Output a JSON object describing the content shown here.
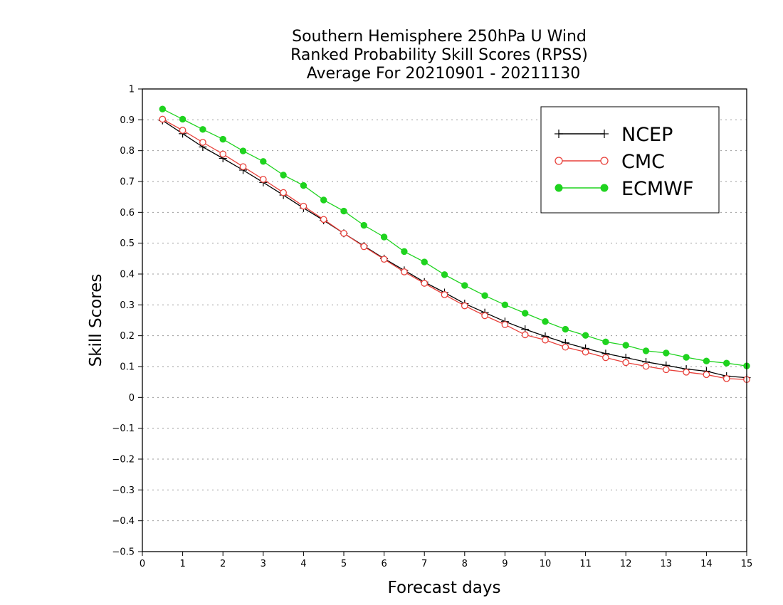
{
  "chart_data": {
    "type": "line",
    "title": [
      "Southern Hemisphere 250hPa U Wind",
      "Ranked Probability Skill Scores (RPSS)",
      "Average For 20210901 - 20211130"
    ],
    "xlabel": "Forecast days",
    "ylabel": "Skill Scores",
    "xlim": [
      0,
      15
    ],
    "ylim": [
      -0.5,
      1
    ],
    "xticks": [
      0,
      1,
      2,
      3,
      4,
      5,
      6,
      7,
      8,
      9,
      10,
      11,
      12,
      13,
      14,
      15
    ],
    "xtick_labels": [
      "0",
      "1",
      "2",
      "3",
      "4",
      "5",
      "6",
      "7",
      "8",
      "9",
      "10",
      "11",
      "12",
      "13",
      "14",
      "15"
    ],
    "yticks": [
      -0.5,
      -0.4,
      -0.3,
      -0.2,
      -0.1,
      0,
      0.1,
      0.2,
      0.3,
      0.4,
      0.5,
      0.6,
      0.7,
      0.8,
      0.9,
      1
    ],
    "ytick_labels": [
      "−0.5",
      "−0.4",
      "−0.3",
      "−0.2",
      "−0.1",
      "0",
      "0.1",
      "0.2",
      "0.3",
      "0.4",
      "0.5",
      "0.6",
      "0.7",
      "0.8",
      "0.9",
      "1"
    ],
    "grid": "horizontal dotted",
    "legend_position": "top-right",
    "x": [
      0.5,
      1.0,
      1.5,
      2.0,
      2.5,
      3.0,
      3.5,
      4.0,
      4.5,
      5.0,
      5.5,
      6.0,
      6.5,
      7.0,
      7.5,
      8.0,
      8.5,
      9.0,
      9.5,
      10.0,
      10.5,
      11.0,
      11.5,
      12.0,
      12.5,
      13.0,
      13.5,
      14.0,
      14.5,
      15.0
    ],
    "series": [
      {
        "name": "NCEP",
        "color": "#000000",
        "marker": "plus",
        "values": [
          0.898,
          0.855,
          0.812,
          0.775,
          0.737,
          0.697,
          0.656,
          0.614,
          0.574,
          0.532,
          0.491,
          0.45,
          0.412,
          0.374,
          0.34,
          0.304,
          0.275,
          0.246,
          0.221,
          0.198,
          0.177,
          0.159,
          0.142,
          0.129,
          0.115,
          0.104,
          0.092,
          0.085,
          0.069,
          0.064
        ]
      },
      {
        "name": "CMC",
        "color": "#e8413b",
        "marker": "open-circle",
        "values": [
          0.902,
          0.866,
          0.827,
          0.789,
          0.748,
          0.707,
          0.664,
          0.62,
          0.577,
          0.532,
          0.489,
          0.448,
          0.407,
          0.37,
          0.333,
          0.297,
          0.265,
          0.236,
          0.203,
          0.186,
          0.163,
          0.147,
          0.129,
          0.113,
          0.101,
          0.09,
          0.082,
          0.074,
          0.061,
          0.058
        ]
      },
      {
        "name": "ECMWF",
        "color": "#1fd31f",
        "marker": "filled-circle",
        "values": [
          0.935,
          0.902,
          0.869,
          0.837,
          0.799,
          0.765,
          0.721,
          0.687,
          0.64,
          0.604,
          0.558,
          0.52,
          0.473,
          0.439,
          0.398,
          0.363,
          0.33,
          0.3,
          0.273,
          0.246,
          0.221,
          0.201,
          0.18,
          0.169,
          0.151,
          0.144,
          0.13,
          0.118,
          0.111,
          0.102
        ]
      }
    ]
  }
}
